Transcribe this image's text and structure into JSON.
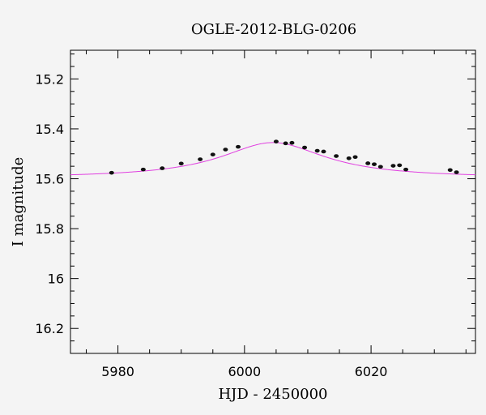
{
  "chart_data": {
    "type": "scatter",
    "title": "OGLE-2012-BLG-0206",
    "xlabel": "HJD - 2450000",
    "ylabel": "I magnitude",
    "xlim": [
      5972.5,
      6036.5
    ],
    "ylim": [
      16.3,
      15.085
    ],
    "y_inverted": true,
    "x_ticks": [
      5980,
      6000,
      6020
    ],
    "y_ticks": [
      15.2,
      15.4,
      15.6,
      15.8,
      16,
      16.2
    ],
    "x_tick_labels": [
      "5980",
      "6000",
      "6020"
    ],
    "y_tick_labels": [
      "15.2",
      "15.4",
      "15.6",
      "15.8",
      "16",
      "16.2"
    ],
    "grid": false,
    "colors": {
      "points": "#111111",
      "model": "#e040e0",
      "background": "#f4f4f4",
      "axes": "#000000"
    },
    "series": [
      {
        "kind": "points",
        "x": [
          5979.0,
          5984.0,
          5987.0,
          5990.0,
          5993.0,
          5995.0,
          5997.0,
          5999.0,
          6005.0,
          6006.5,
          6007.5,
          6009.5,
          6011.5,
          6012.5,
          6014.5,
          6016.5,
          6017.5,
          6019.5,
          6020.5,
          6021.5,
          6023.5,
          6024.5,
          6025.5,
          6032.5,
          6033.5
        ],
        "y": [
          15.576,
          15.563,
          15.558,
          15.539,
          15.522,
          15.503,
          15.483,
          15.472,
          15.451,
          15.458,
          15.456,
          15.475,
          15.488,
          15.491,
          15.509,
          15.518,
          15.513,
          15.538,
          15.542,
          15.552,
          15.548,
          15.546,
          15.563,
          15.565,
          15.574
        ]
      },
      {
        "kind": "model",
        "baseline": 15.597,
        "peak_x": 6004.5,
        "peak_y": 15.455,
        "width": 15.0
      }
    ]
  }
}
